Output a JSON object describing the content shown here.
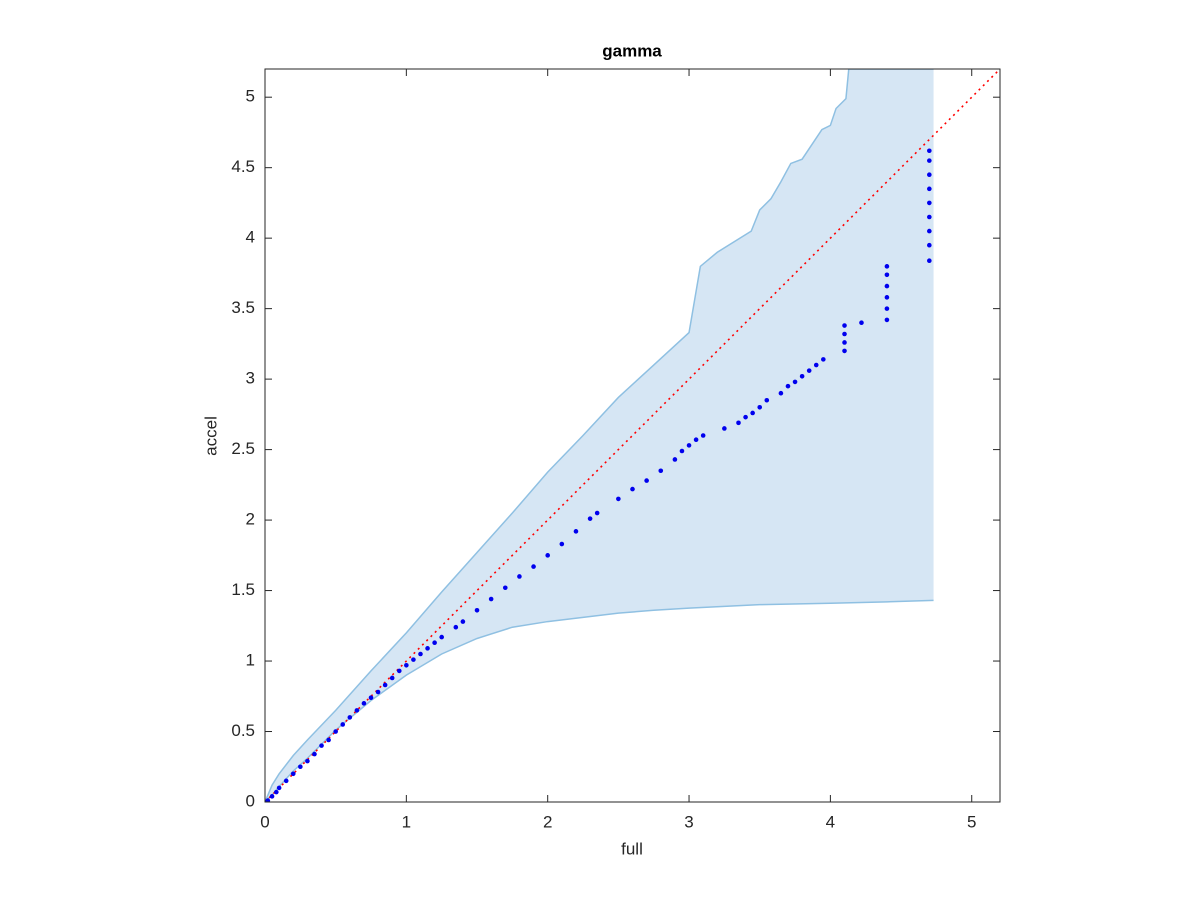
{
  "chart_data": {
    "type": "scatter",
    "title": "gamma",
    "x_label": "full",
    "y_label": "accel",
    "xlim": [
      0,
      5.2
    ],
    "ylim": [
      0,
      5.2
    ],
    "xticks": [
      0,
      1,
      2,
      3,
      4,
      5
    ],
    "yticks": [
      0,
      0.5,
      1,
      1.5,
      2,
      2.5,
      3,
      3.5,
      4,
      4.5,
      5
    ],
    "band": {
      "color": "#d6e6f4",
      "edge_color": "#8fc0e2",
      "upper": {
        "x": [
          0,
          0.05,
          0.1,
          0.2,
          0.3,
          0.5,
          0.75,
          1.0,
          1.25,
          1.5,
          1.75,
          2.0,
          2.25,
          2.5,
          2.75,
          3.0,
          3.08,
          3.2,
          3.44,
          3.5,
          3.58,
          3.65,
          3.72,
          3.8,
          3.94,
          4.0,
          4.04,
          4.11,
          4.13,
          4.73
        ],
        "values": [
          0,
          0.12,
          0.2,
          0.33,
          0.44,
          0.65,
          0.93,
          1.2,
          1.49,
          1.77,
          2.05,
          2.34,
          2.6,
          2.87,
          3.1,
          3.33,
          3.8,
          3.9,
          4.05,
          4.2,
          4.28,
          4.4,
          4.53,
          4.56,
          4.77,
          4.8,
          4.92,
          4.99,
          5.2,
          5.2
        ]
      },
      "lower": {
        "x": [
          0,
          0.05,
          0.1,
          0.2,
          0.3,
          0.5,
          0.75,
          1.0,
          1.25,
          1.5,
          1.75,
          2.0,
          2.25,
          2.5,
          2.75,
          3.0,
          3.5,
          4.0,
          4.4,
          4.73
        ],
        "values": [
          0,
          0.05,
          0.11,
          0.22,
          0.31,
          0.51,
          0.72,
          0.9,
          1.05,
          1.16,
          1.24,
          1.28,
          1.31,
          1.34,
          1.36,
          1.375,
          1.4,
          1.41,
          1.42,
          1.43
        ]
      }
    },
    "points": {
      "color": "#0000ee",
      "x": [
        0,
        0.02,
        0.05,
        0.08,
        0.1,
        0.15,
        0.2,
        0.25,
        0.3,
        0.35,
        0.4,
        0.45,
        0.5,
        0.55,
        0.6,
        0.65,
        0.7,
        0.75,
        0.8,
        0.85,
        0.9,
        0.95,
        1.0,
        1.05,
        1.1,
        1.15,
        1.2,
        1.25,
        1.35,
        1.4,
        1.5,
        1.6,
        1.7,
        1.8,
        1.9,
        2.0,
        2.1,
        2.2,
        2.3,
        2.35,
        2.5,
        2.6,
        2.7,
        2.8,
        2.9,
        2.95,
        3.0,
        3.05,
        3.1,
        3.25,
        3.35,
        3.4,
        3.45,
        3.5,
        3.55,
        3.65,
        3.7,
        3.75,
        3.8,
        3.85,
        3.9,
        3.95,
        4.1,
        4.1,
        4.1,
        4.1,
        4.22,
        4.4,
        4.4,
        4.4,
        4.4,
        4.4,
        4.4,
        4.7,
        4.7,
        4.7,
        4.7,
        4.7,
        4.7,
        4.7,
        4.7,
        4.7
      ],
      "values": [
        0,
        0.01,
        0.04,
        0.07,
        0.1,
        0.15,
        0.2,
        0.25,
        0.29,
        0.34,
        0.4,
        0.44,
        0.5,
        0.55,
        0.6,
        0.65,
        0.7,
        0.74,
        0.78,
        0.83,
        0.88,
        0.93,
        0.97,
        1.01,
        1.05,
        1.09,
        1.13,
        1.17,
        1.24,
        1.28,
        1.36,
        1.44,
        1.52,
        1.6,
        1.67,
        1.75,
        1.83,
        1.92,
        2.01,
        2.05,
        2.15,
        2.22,
        2.28,
        2.35,
        2.43,
        2.49,
        2.53,
        2.57,
        2.6,
        2.65,
        2.69,
        2.73,
        2.76,
        2.8,
        2.85,
        2.9,
        2.95,
        2.98,
        3.02,
        3.06,
        3.1,
        3.14,
        3.2,
        3.26,
        3.32,
        3.38,
        3.4,
        3.42,
        3.5,
        3.58,
        3.66,
        3.74,
        3.8,
        3.84,
        3.95,
        4.05,
        4.15,
        4.25,
        4.35,
        4.45,
        4.55,
        4.62
      ]
    },
    "reference_line": {
      "color": "#ff0000",
      "x": [
        0,
        5.2
      ],
      "values": [
        0,
        5.2
      ]
    }
  }
}
